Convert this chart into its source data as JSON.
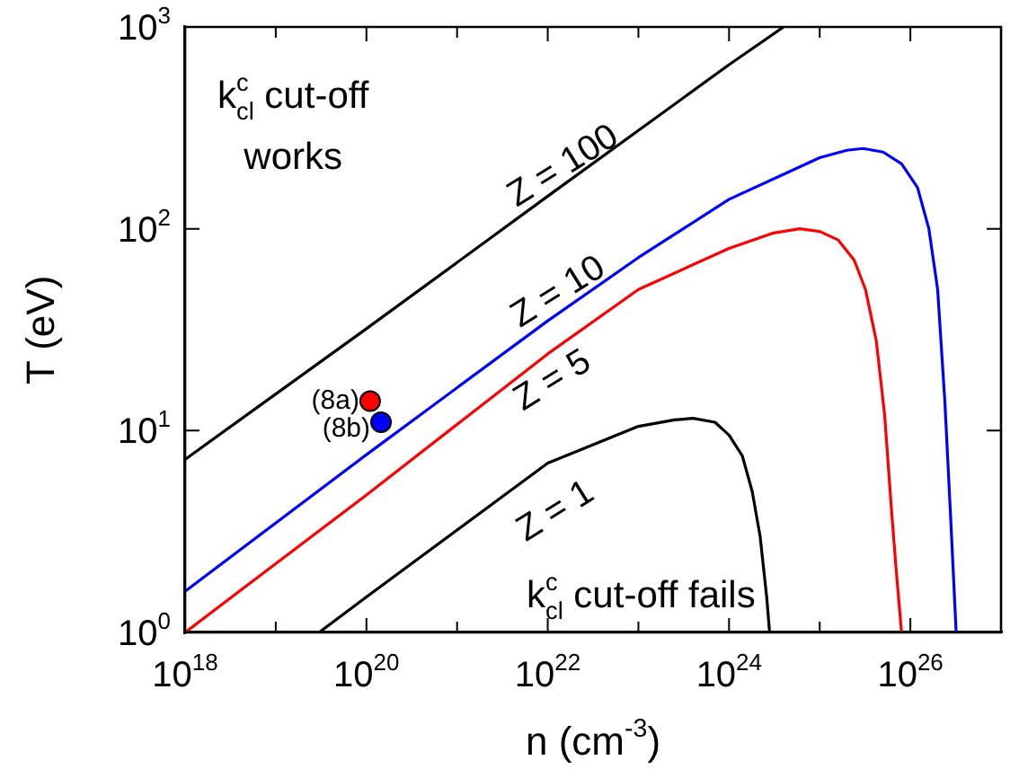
{
  "chart_data": {
    "type": "line",
    "xlabel": "n (cm$^{-3}$)",
    "ylabel": "T (eV)",
    "log": "xy",
    "grid": false,
    "legend": false,
    "marker": "none",
    "line_style": "solid",
    "xlim": [
      1e+18,
      1e+27
    ],
    "ylim": [
      1,
      1000
    ],
    "xticks": [
      {
        "value": 1e+18,
        "label": "10$^{18}$"
      },
      {
        "value": 1e+19,
        "label": null
      },
      {
        "value": 1e+20,
        "label": "10$^{20}$"
      },
      {
        "value": 1e+21,
        "label": null
      },
      {
        "value": 1e+22,
        "label": "10$^{22}$"
      },
      {
        "value": 1e+23,
        "label": null
      },
      {
        "value": 1e+24,
        "label": "10$^{24}$"
      },
      {
        "value": 1e+25,
        "label": null
      },
      {
        "value": 1e+26,
        "label": "10$^{26}$"
      },
      {
        "value": 1e+27,
        "label": null
      }
    ],
    "yticks": [
      {
        "value": 1,
        "label": "10$^{0}$"
      },
      {
        "value": 10,
        "label": "10$^{1}$"
      },
      {
        "value": 100,
        "label": "10$^{2}$"
      },
      {
        "value": 1000,
        "label": "10$^{3}$"
      }
    ],
    "series": [
      {
        "name": "Z = 100",
        "color": "#000000",
        "x": [
          1e+18,
          1e+20,
          1e+22,
          1e+24,
          4e+24
        ],
        "values": [
          7.2,
          32,
          145,
          650,
          1000
        ]
      },
      {
        "name": "Z = 10",
        "color": "#0000ff",
        "x": [
          1e+18,
          1e+20,
          1e+22,
          1e+23,
          1e+24,
          5e+24,
          1e+25,
          2e+25,
          3e+25,
          5e+25,
          8e+25,
          1.2e+26,
          1.6e+26,
          2e+26,
          2.4e+26,
          2.8e+26,
          3.2e+26
        ],
        "values": [
          1.6,
          7.6,
          35,
          72,
          140,
          195,
          225,
          245,
          250,
          240,
          210,
          160,
          100,
          50,
          14,
          3.5,
          1
        ]
      },
      {
        "name": "Z = 5",
        "color": "#ff0000",
        "x": [
          1e+18,
          1e+20,
          1e+22,
          1e+23,
          1e+24,
          3e+24,
          6e+24,
          1e+25,
          1.6e+25,
          2.4e+25,
          3.2e+25,
          4.2e+25,
          5.2e+25,
          6.2e+25,
          7e+25,
          8e+25
        ],
        "values": [
          1,
          4.8,
          24,
          50,
          80,
          95,
          100,
          97,
          88,
          70,
          50,
          28,
          12,
          4,
          2,
          1
        ]
      },
      {
        "name": "Z = 1",
        "color": "#000000",
        "x": [
          3e+19,
          1e+20,
          1e+22,
          1e+23,
          2.5e+23,
          4e+23,
          7e+23,
          1e+24,
          1.4e+24,
          1.8e+24,
          2.2e+24,
          2.6e+24,
          2.8e+24
        ],
        "values": [
          1,
          1.5,
          6.9,
          10.5,
          11.3,
          11.5,
          11,
          9.5,
          7.5,
          5,
          3,
          1.5,
          1
        ]
      },
      {
        "name": "(8a)",
        "type": "scatter",
        "marker": "circle",
        "color": "#ff0000",
        "x": [
          1.1e+20
        ],
        "values": [
          14
        ]
      },
      {
        "name": "(8b)",
        "type": "scatter",
        "marker": "circle",
        "color": "#0000ff",
        "x": [
          1.45e+20
        ],
        "values": [
          11
        ]
      }
    ],
    "annotations": [
      "k$^{c}$$_{cl}$ cut-off works",
      "k$^{c}$$_{cl}$ cut-off fails"
    ]
  }
}
